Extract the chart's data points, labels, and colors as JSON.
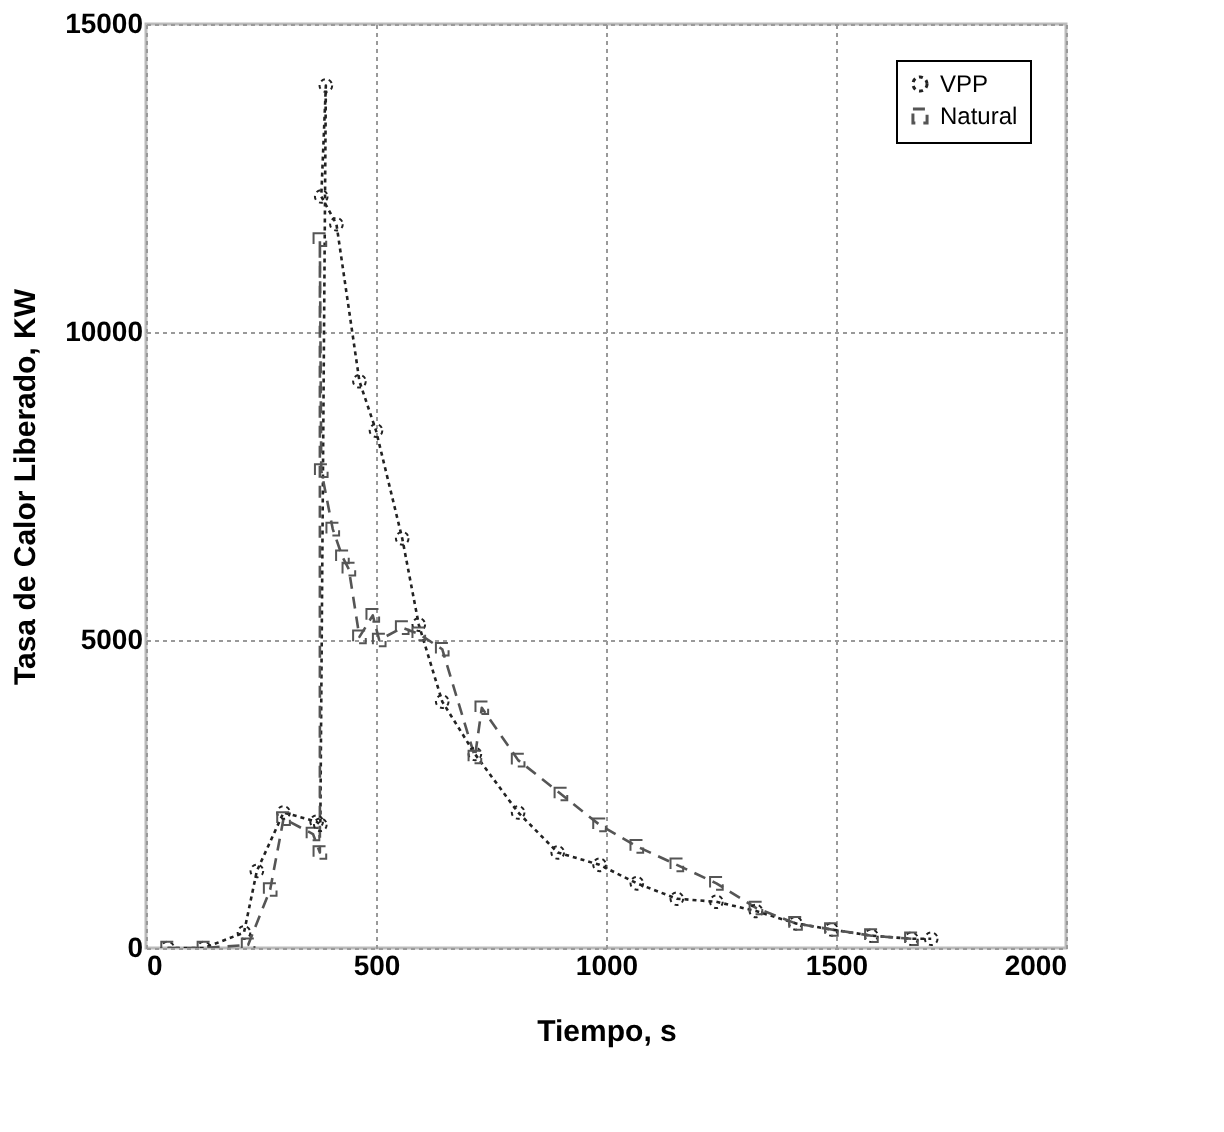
{
  "chart_data": {
    "type": "line",
    "xlabel": "Tiempo, s",
    "ylabel": "Tasa de Calor Liberado, KW",
    "xlim": [
      0,
      2000
    ],
    "ylim": [
      0,
      15000
    ],
    "xticks": [
      0,
      500,
      1000,
      1500,
      2000
    ],
    "yticks": [
      0,
      5000,
      10000,
      15000
    ],
    "grid": true,
    "legend": "top right",
    "series": [
      {
        "name": "VPP",
        "color": "#222222",
        "marker": "circle",
        "line_style": "dotted",
        "x": [
          47,
          126,
          213,
          241,
          299,
          371,
          379,
          391,
          381,
          414,
          464,
          500,
          557,
          593,
          644,
          715,
          809,
          895,
          986,
          1067,
          1154,
          1240,
          1326,
          1412,
          1490,
          1577,
          1664,
          1707
        ],
        "values": [
          0,
          0,
          250,
          1250,
          2200,
          2050,
          2000,
          14000,
          12200,
          11750,
          9200,
          8400,
          6650,
          5250,
          4000,
          3150,
          2200,
          1550,
          1350,
          1050,
          800,
          750,
          600,
          400,
          300,
          200,
          150,
          150
        ]
      },
      {
        "name": "Natural",
        "color": "#555555",
        "marker": "square",
        "line_style": "dashed",
        "x": [
          47,
          126,
          222,
          270,
          299,
          363,
          378,
          378,
          381,
          406,
          427,
          441,
          464,
          493,
          507,
          557,
          593,
          644,
          715,
          730,
          809,
          902,
          986,
          1067,
          1154,
          1240,
          1326,
          1412,
          1490,
          1577,
          1664
        ],
        "values": [
          0,
          0,
          50,
          950,
          2100,
          1850,
          1550,
          11500,
          7750,
          6800,
          6350,
          6150,
          5050,
          5400,
          5000,
          5200,
          5100,
          4850,
          3100,
          3900,
          3050,
          2500,
          2000,
          1650,
          1350,
          1050,
          650,
          400,
          300,
          200,
          150
        ]
      }
    ]
  }
}
